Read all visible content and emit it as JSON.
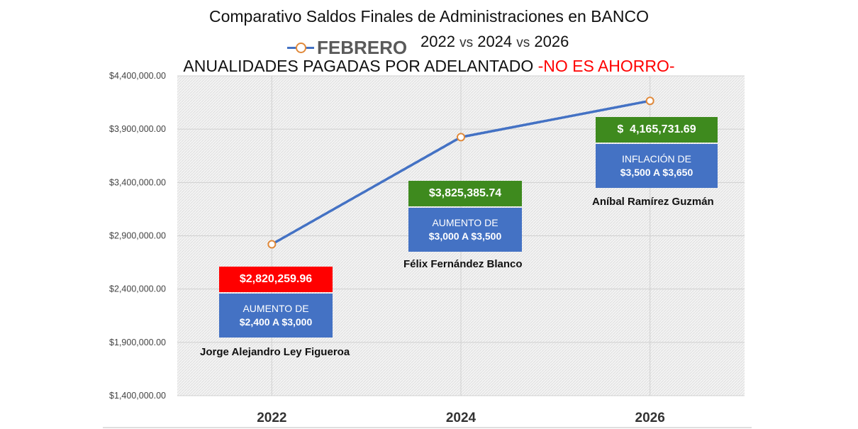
{
  "header": {
    "title": "Comparativo Saldos Finales de Administraciones en BANCO",
    "years": [
      "2022",
      "2024",
      "2026"
    ],
    "vs": "vs",
    "subtitle_main": "ANUALIDADES PAGADAS POR ADELANTADO ",
    "subtitle_warning": "-NO ES AHORRO-"
  },
  "colors": {
    "line": "#4472C4",
    "marker_edge": "#E0893A",
    "red_box": "#FF0000",
    "green_box": "#3E8A1E",
    "blue_box": "#4472C4",
    "warning_text": "#FF0000"
  },
  "annotations": [
    {
      "value": "$2,820,259.96",
      "value_color": "#FF0000",
      "desc_line1": "AUMENTO DE",
      "desc_line2": "$2,400 A $3,000",
      "name": "Jorge Alejandro Ley Figueroa"
    },
    {
      "value": "$3,825,385.74",
      "value_color": "#3E8A1E",
      "desc_line1": "AUMENTO DE",
      "desc_line2": "$3,000 A $3,500",
      "name": "Félix Fernández Blanco"
    },
    {
      "value": "$  4,165,731.69",
      "value_color": "#3E8A1E",
      "desc_line1": "INFLACIÓN DE",
      "desc_line2": "$3,500 A $3,650",
      "name": "Aníbal Ramírez Guzmán"
    }
  ],
  "chart_data": {
    "type": "line",
    "title": "Comparativo Saldos Finales de Administraciones en BANCO",
    "categories": [
      "2022",
      "2024",
      "2026"
    ],
    "series": [
      {
        "name": "FEBRERO",
        "values": [
          2820259.96,
          3825385.74,
          4165731.69
        ]
      }
    ],
    "ylim": [
      1400000,
      4400000
    ],
    "yticks": [
      1400000,
      1900000,
      2400000,
      2900000,
      3400000,
      3900000,
      4400000
    ],
    "ytick_labels": [
      "$1,400,000.00",
      "$1,900,000.00",
      "$2,400,000.00",
      "$2,900,000.00",
      "$3,400,000.00",
      "$3,900,000.00",
      "$4,400,000.00"
    ],
    "xlabel": "",
    "ylabel": "",
    "grid": true,
    "legend": "top"
  }
}
